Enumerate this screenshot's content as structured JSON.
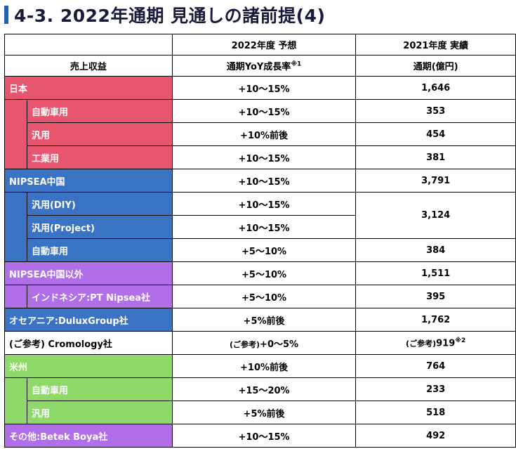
{
  "title": "4-3. 2022年通期 見通しの諸前提(4)",
  "header": {
    "col1_top": "",
    "col1_bottom": "売上収益",
    "col2_top": "2022年度 予想",
    "col2_bottom": "通期YoY成長率",
    "col2_note": "※1",
    "col3_top": "2021年度 実績",
    "col3_bottom": "通期(億円)"
  },
  "rows": {
    "japan": {
      "label": "日本",
      "forecast": "+10～15%",
      "actual": "1,646"
    },
    "japan_auto": {
      "label": "自動車用",
      "forecast": "+10～15%",
      "actual": "353"
    },
    "japan_general": {
      "label": "汎用",
      "forecast": "+10%前後",
      "actual": "454"
    },
    "japan_industrial": {
      "label": "工業用",
      "forecast": "+10～15%",
      "actual": "381"
    },
    "china": {
      "label": "NIPSEA中国",
      "forecast": "+10～15%",
      "actual": "3,791"
    },
    "china_diy": {
      "label": "汎用(DIY)",
      "forecast": "+10～15%"
    },
    "china_project": {
      "label": "汎用(Project)",
      "forecast": "+10～15%"
    },
    "china_general_actual": "3,124",
    "china_auto": {
      "label": "自動車用",
      "forecast": "+5～10%",
      "actual": "384"
    },
    "nipsea_other": {
      "label": "NIPSEA中国以外",
      "forecast": "+5～10%",
      "actual": "1,511"
    },
    "indonesia": {
      "label": "インドネシア:PT Nipsea社",
      "forecast": "+5～10%",
      "actual": "395"
    },
    "oceania": {
      "label": "オセアニア:DuluxGroup社",
      "forecast": "+5%前後",
      "actual": "1,762"
    },
    "cromology": {
      "label": "(ご参考) Cromology社",
      "forecast_prefix": "(ご参考)",
      "forecast": "+0～5%",
      "actual_prefix": "(ご参考)",
      "actual": "919",
      "actual_note": "※2"
    },
    "usa": {
      "label": "米州",
      "forecast": "+10%前後",
      "actual": "764"
    },
    "usa_auto": {
      "label": "自動車用",
      "forecast": "+15～20%",
      "actual": "233"
    },
    "usa_general": {
      "label": "汎用",
      "forecast": "+5%前後",
      "actual": "518"
    },
    "other": {
      "label": "その他:Betek Boya社",
      "forecast": "+10～15%",
      "actual": "492"
    }
  },
  "colors": {
    "japan": "#e8556e",
    "china": "#3a73c4",
    "nipsea_other": "#b06ee8",
    "usa": "#8fd96a",
    "title_accent": "#1f5fb4"
  }
}
